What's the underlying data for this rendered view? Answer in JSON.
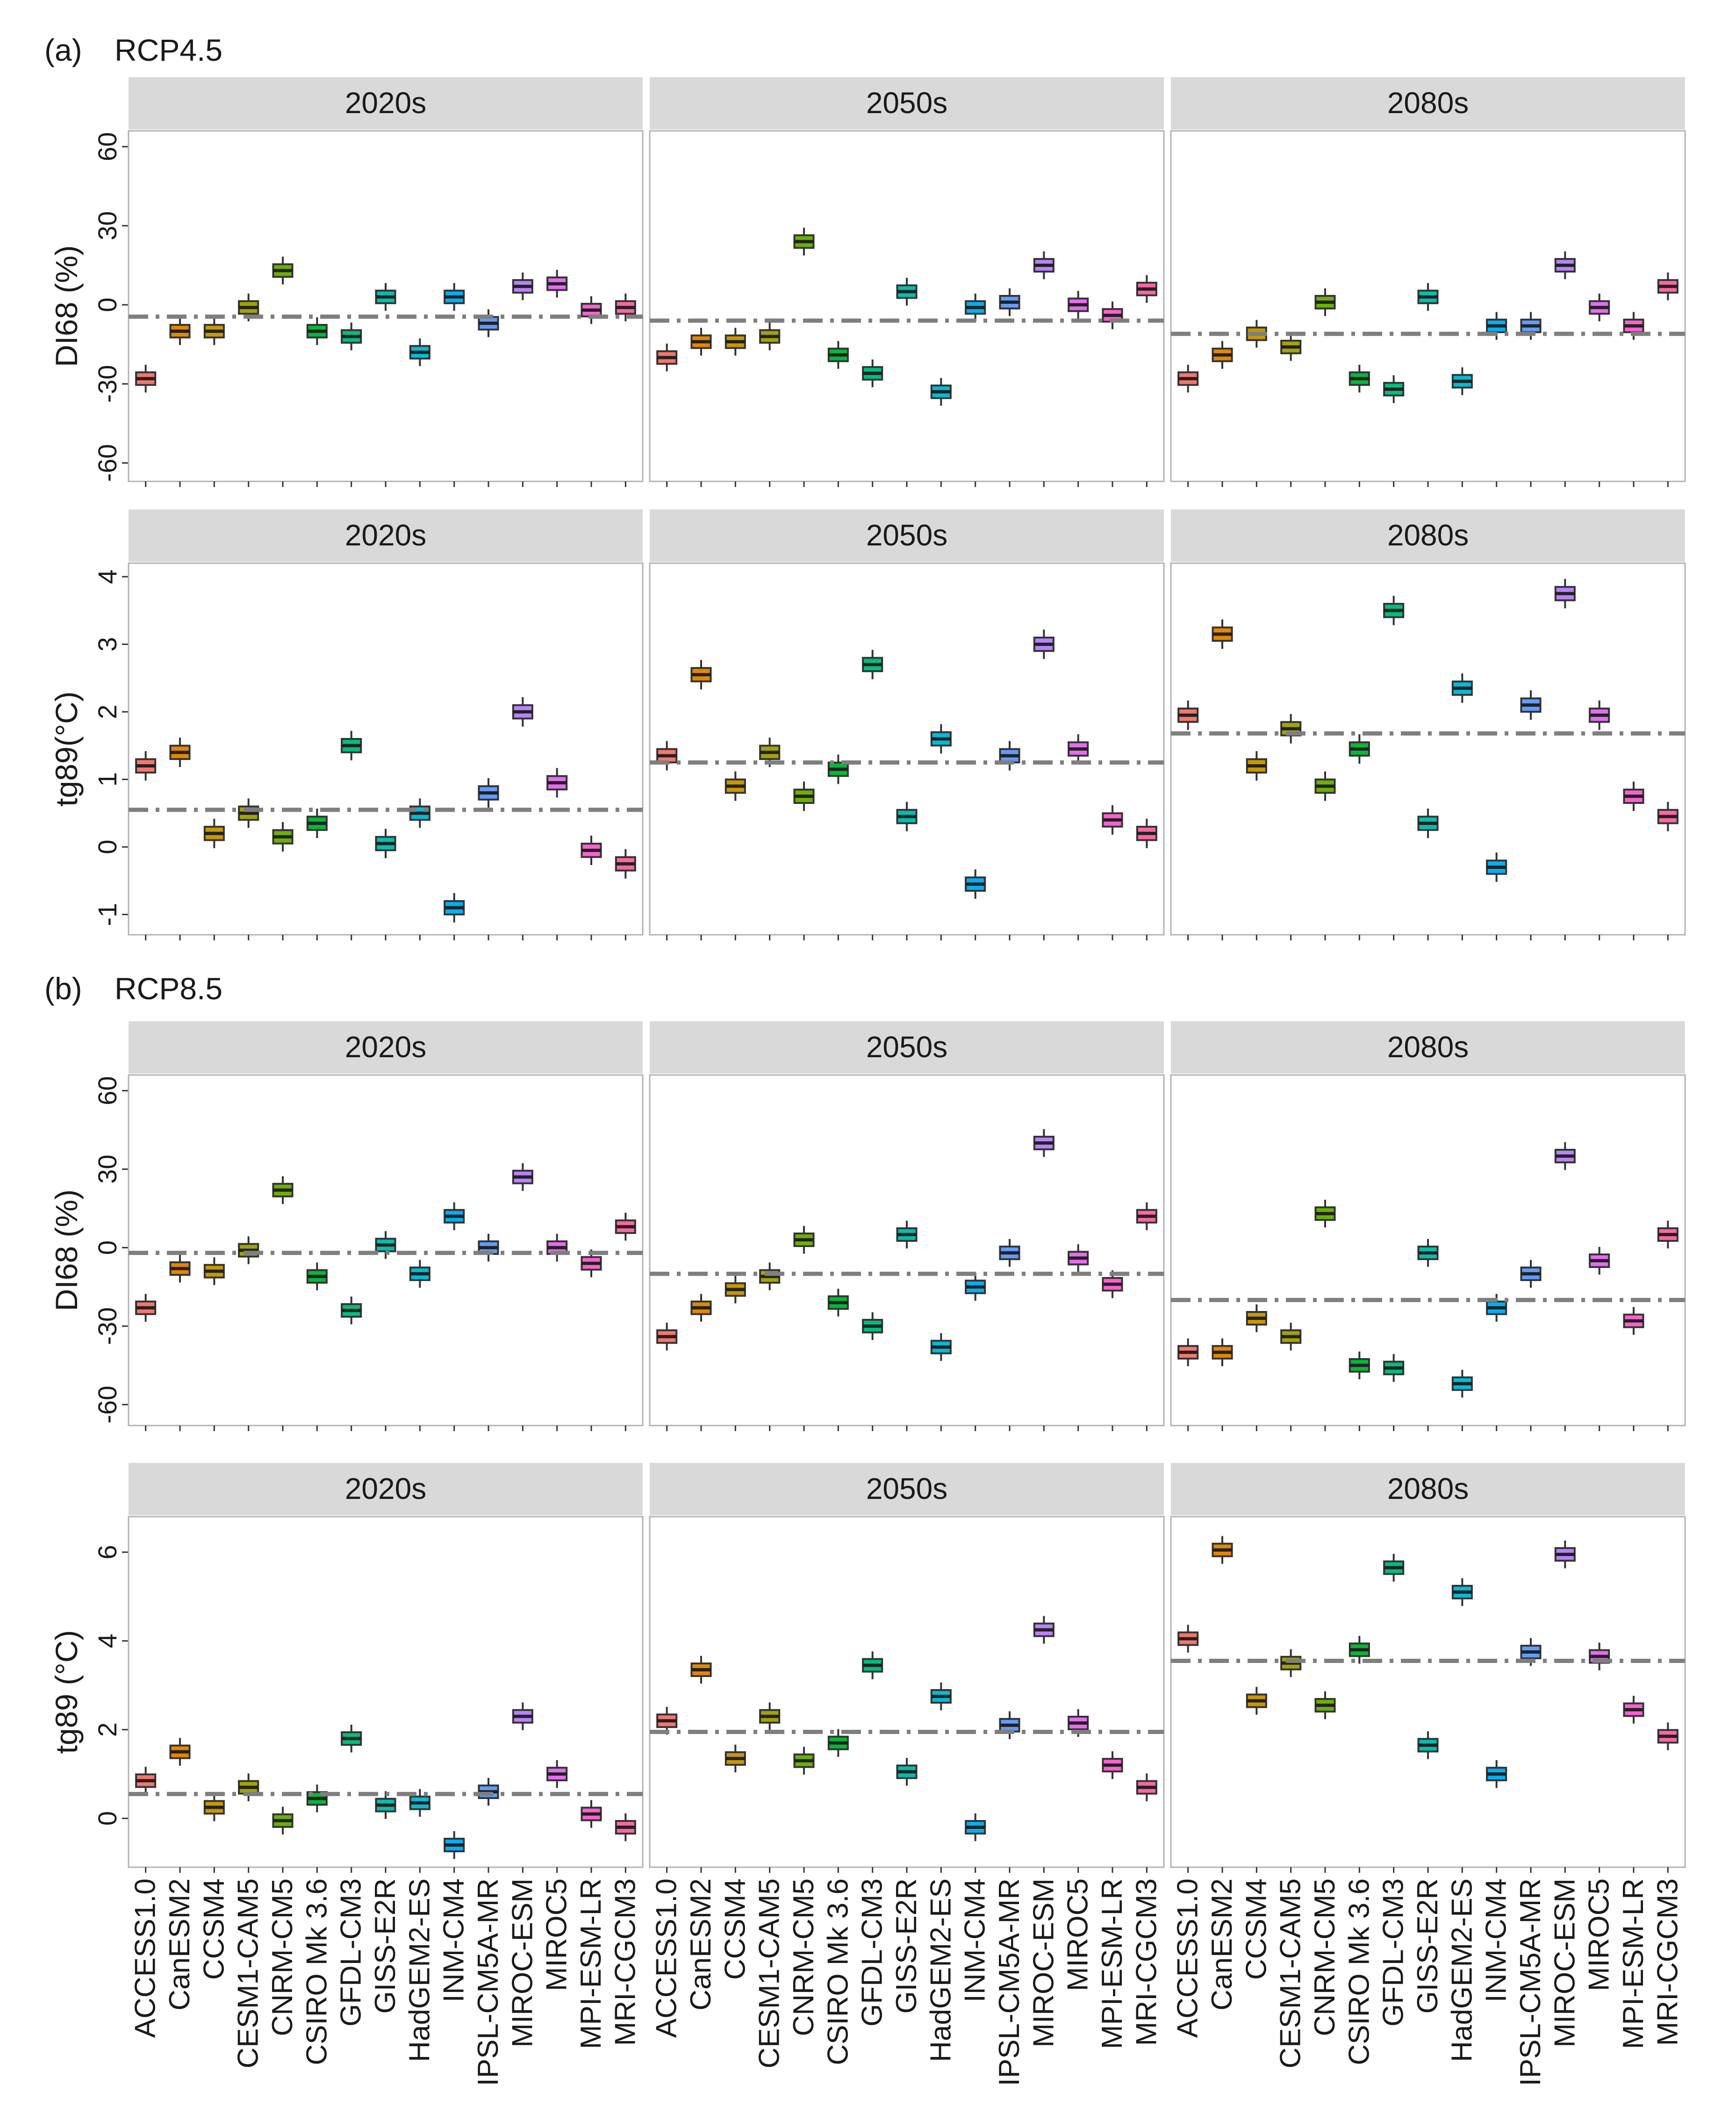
{
  "figure": {
    "section_a_letter": "(a)",
    "section_a_title": "RCP4.5",
    "section_b_letter": "(b)",
    "section_b_title": "RCP8.5"
  },
  "chart_data": {
    "type": "box",
    "periods": [
      "2020s",
      "2050s",
      "2080s"
    ],
    "models": [
      "ACCESS1.0",
      "CanESM2",
      "CCSM4",
      "CESM1-CAM5",
      "CNRM-CM5",
      "CSIRO Mk 3.6",
      "GFDL-CM3",
      "GISS-E2R",
      "HadGEM2-ES",
      "INM-CM4",
      "IPSL-CM5A-MR",
      "MIROC-ESM",
      "MIROC5",
      "MPI-ESM-LR",
      "MRI-CGCM3"
    ],
    "model_colors": [
      "#F8766D",
      "#E58700",
      "#C99800",
      "#A3A500",
      "#6BB100",
      "#00BA38",
      "#00BF7D",
      "#00C0AF",
      "#00BCD8",
      "#00B0F6",
      "#619CFF",
      "#B983FF",
      "#E76BF3",
      "#FD61D1",
      "#FF67A4"
    ],
    "rows": [
      {
        "scenario": "RCP4.5",
        "ylabel": "DI68 (%)",
        "ylim": [
          -67,
          66
        ],
        "yticks": [
          -60,
          -30,
          0,
          30,
          60
        ],
        "ytick_labels": [
          "-60",
          "-30",
          "0",
          "30",
          "60"
        ],
        "ensemble_mean": [
          -4.5,
          -6,
          -11
        ],
        "medians": [
          [
            -28,
            -10,
            -10,
            -1,
            13,
            -10,
            -12,
            3,
            -18,
            3,
            -7,
            7,
            8,
            -2,
            -1
          ],
          [
            -20,
            -14,
            -14,
            -12,
            24,
            -19,
            -26,
            5,
            -33,
            -1,
            1,
            15,
            0,
            -4,
            6
          ],
          [
            -28,
            -19,
            -11,
            -16,
            1,
            -28,
            -32,
            3,
            -29,
            -8,
            -8,
            15,
            -1,
            -8,
            7
          ]
        ]
      },
      {
        "scenario": "RCP4.5",
        "ylabel": "tg89(°C)",
        "ylim": [
          -1.3,
          4.2
        ],
        "yticks": [
          -1,
          0,
          1,
          2,
          3,
          4
        ],
        "ytick_labels": [
          "-1",
          "0",
          "1",
          "2",
          "3",
          "4"
        ],
        "ensemble_mean": [
          0.55,
          1.25,
          1.68
        ],
        "medians": [
          [
            1.2,
            1.4,
            0.2,
            0.5,
            0.15,
            0.35,
            1.5,
            0.05,
            0.5,
            -0.9,
            0.8,
            2.0,
            0.95,
            -0.05,
            -0.25
          ],
          [
            1.35,
            2.55,
            0.9,
            1.4,
            0.75,
            1.15,
            2.7,
            0.45,
            1.6,
            -0.55,
            1.35,
            3.0,
            1.45,
            0.4,
            0.2
          ],
          [
            1.95,
            3.15,
            1.2,
            1.75,
            0.9,
            1.45,
            3.5,
            0.35,
            2.35,
            -0.3,
            2.1,
            3.75,
            1.95,
            0.75,
            0.45
          ]
        ]
      },
      {
        "scenario": "RCP8.5",
        "ylabel": "DI68 (%)",
        "ylim": [
          -68,
          66
        ],
        "yticks": [
          -60,
          -30,
          0,
          30,
          60
        ],
        "ytick_labels": [
          "-60",
          "-30",
          "0",
          "30",
          "60"
        ],
        "ensemble_mean": [
          -2,
          -10,
          -20
        ],
        "medians": [
          [
            -23,
            -8,
            -9,
            -1,
            22,
            -11,
            -24,
            1,
            -10,
            12,
            0,
            27,
            0,
            -6,
            8
          ],
          [
            -34,
            -23,
            -16,
            -11,
            3,
            -21,
            -30,
            5,
            -38,
            -15,
            -2,
            40,
            -4,
            -14,
            12
          ],
          [
            -40,
            -40,
            -27,
            -34,
            13,
            -45,
            -46,
            -2,
            -52,
            -23,
            -10,
            35,
            -5,
            -28,
            5
          ]
        ]
      },
      {
        "scenario": "RCP8.5",
        "ylabel": "tg89 (°C)",
        "ylim": [
          -1.1,
          6.8
        ],
        "yticks": [
          0,
          2,
          4,
          6
        ],
        "ytick_labels": [
          "0",
          "2",
          "4",
          "6"
        ],
        "ensemble_mean": [
          0.55,
          1.95,
          3.55
        ],
        "medians": [
          [
            0.85,
            1.5,
            0.25,
            0.7,
            -0.05,
            0.45,
            1.8,
            0.3,
            0.35,
            -0.6,
            0.6,
            2.3,
            1.0,
            0.1,
            -0.2
          ],
          [
            2.2,
            3.35,
            1.35,
            2.3,
            1.3,
            1.7,
            3.45,
            1.05,
            2.75,
            -0.2,
            2.1,
            4.25,
            2.15,
            1.2,
            0.7
          ],
          [
            4.05,
            6.05,
            2.65,
            3.5,
            2.55,
            3.8,
            5.65,
            1.65,
            5.1,
            1.0,
            3.75,
            5.95,
            3.65,
            2.45,
            1.85
          ]
        ]
      }
    ]
  }
}
